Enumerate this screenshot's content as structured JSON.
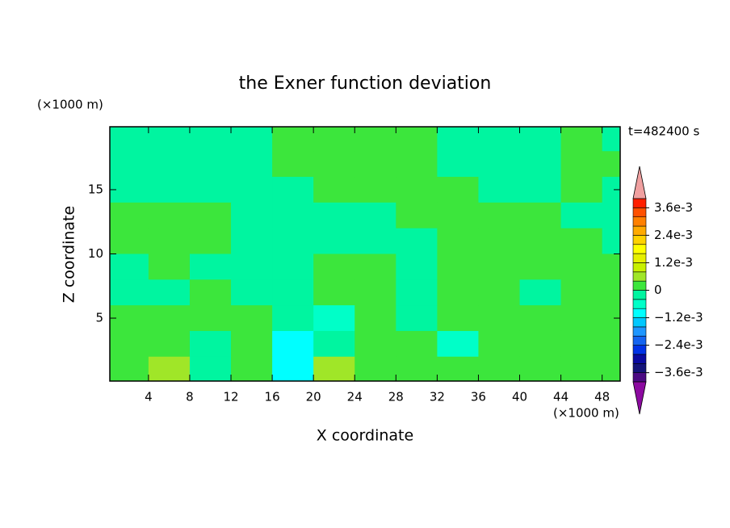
{
  "chart_data": {
    "type": "contour",
    "title": "the Exner function deviation",
    "x_label": "X coordinate",
    "y_label": "Z coordinate",
    "x_unit": "(×1000 m)",
    "y_unit": "(×1000 m)",
    "time_label": "t=482400 s",
    "xlim": [
      0.25,
      49.75
    ],
    "ylim": [
      0.1,
      19.9
    ],
    "xticks": [
      4,
      8,
      12,
      16,
      20,
      24,
      28,
      32,
      36,
      40,
      44,
      48
    ],
    "yticks": [
      5,
      10,
      15
    ],
    "x": [
      2,
      6,
      10,
      14,
      18,
      22,
      26,
      30,
      34,
      38,
      42,
      46,
      50
    ],
    "z": [
      19,
      17,
      15,
      13,
      11,
      9,
      7,
      5,
      3,
      1
    ],
    "field": [
      [
        -0.0002,
        -0.0002,
        -0.0002,
        -0.0002,
        0.0002,
        0.0002,
        0.0002,
        0.0002,
        -0.0002,
        -0.0002,
        -0.0002,
        0.0002,
        -0.0002
      ],
      [
        -0.0002,
        -0.0002,
        -0.0002,
        -0.0002,
        0.0002,
        0.0002,
        0.0002,
        0.0002,
        -0.0002,
        -0.0002,
        -0.0002,
        0.0002,
        0.0002
      ],
      [
        -0.0002,
        -0.0002,
        -0.0002,
        -0.0002,
        -0.0002,
        0.0002,
        0.0002,
        0.0002,
        0.0002,
        -0.0002,
        -0.0002,
        0.0002,
        -0.0002
      ],
      [
        0.0002,
        0.0002,
        0.0002,
        -0.0002,
        -0.0002,
        -0.0002,
        -0.0002,
        0.0002,
        0.0002,
        0.0002,
        0.0002,
        -0.0002,
        -0.0002
      ],
      [
        0.0002,
        0.0002,
        0.0002,
        -0.0002,
        -0.0002,
        -0.0002,
        -0.0002,
        -0.0002,
        0.0002,
        0.0002,
        0.0002,
        0.0002,
        -0.0002
      ],
      [
        -0.0002,
        0.0002,
        -0.0002,
        -0.0002,
        -0.0002,
        0.0002,
        0.0002,
        -0.0002,
        0.0002,
        0.0002,
        0.0002,
        0.0002,
        0.0002
      ],
      [
        -0.0002,
        -0.0002,
        0.0002,
        -0.0002,
        -0.0002,
        0.0002,
        0.0002,
        -0.0002,
        0.0002,
        0.0002,
        -0.0002,
        0.0002,
        0.0002
      ],
      [
        0.0002,
        0.0002,
        0.0002,
        0.0002,
        -0.0002,
        -0.0006,
        0.0002,
        -0.0002,
        0.0002,
        0.0002,
        0.0002,
        0.0002,
        0.0002
      ],
      [
        0.0002,
        0.0002,
        -0.0002,
        0.0002,
        -0.001,
        -0.0002,
        0.0002,
        0.0002,
        -0.0006,
        0.0002,
        0.0002,
        0.0002,
        0.0002
      ],
      [
        0.0002,
        0.0006,
        -0.0002,
        0.0002,
        -0.001,
        0.0006,
        0.0002,
        0.0002,
        0.0002,
        0.0002,
        0.0002,
        0.0002,
        0.0002
      ]
    ],
    "levels": [
      -0.004,
      -0.0036,
      -0.0032,
      -0.0028,
      -0.0024,
      -0.002,
      -0.0016,
      -0.0012,
      -0.0008,
      -0.0004,
      0,
      0.0004,
      0.0008,
      0.0012,
      0.0016,
      0.002,
      0.0024,
      0.0028,
      0.0032,
      0.0036,
      0.004
    ],
    "colors": [
      "#4b0a82",
      "#14147a",
      "#0a0aa0",
      "#0032e6",
      "#1464f0",
      "#1e96ff",
      "#00c8ff",
      "#00ffff",
      "#00ffc8",
      "#00f5a0",
      "#3ce63c",
      "#a0e628",
      "#c8f000",
      "#e6f000",
      "#ffff00",
      "#ffd200",
      "#ffaa00",
      "#ff8000",
      "#ff5000",
      "#ff2000"
    ],
    "over_color": "#f0a0a0",
    "under_color": "#8c0aa0",
    "colorbar_ticks": [
      {
        "value": 0.0036,
        "label": "3.6e-3"
      },
      {
        "value": 0.0024,
        "label": "2.4e-3"
      },
      {
        "value": 0.0012,
        "label": "1.2e-3"
      },
      0,
      {
        "value": -0.0012,
        "label": "−1.2e-3"
      },
      {
        "value": -0.0024,
        "label": "−2.4e-3"
      },
      {
        "value": -0.0036,
        "label": "−3.6e-3"
      }
    ]
  }
}
